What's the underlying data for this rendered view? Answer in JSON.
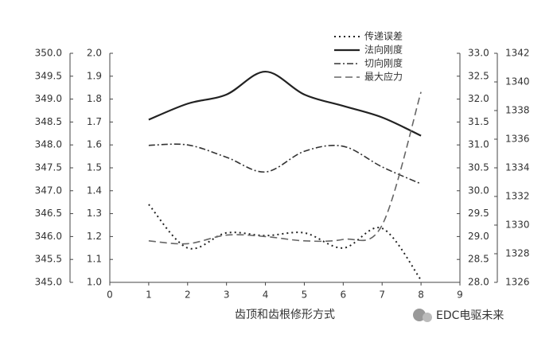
{
  "chart_data": {
    "type": "line",
    "x_label": "齿顶和齿根修形方式",
    "x": [
      1,
      2,
      3,
      4,
      5,
      6,
      7,
      8
    ],
    "xlim": [
      0,
      9
    ],
    "xticks": [
      0,
      1,
      2,
      3,
      4,
      5,
      6,
      7,
      8,
      9
    ],
    "ylim": [
      345,
      350
    ],
    "yticks": [
      {
        "value": 345,
        "label": "345.0"
      },
      {
        "value": 345.5,
        "label": "345.5"
      },
      {
        "value": 346,
        "label": "346.0"
      },
      {
        "value": 346.5,
        "label": "346.5"
      },
      {
        "value": 347,
        "label": "347.0"
      },
      {
        "value": 347.5,
        "label": "347.5"
      },
      {
        "value": 348,
        "label": "348.0"
      },
      {
        "value": 348.5,
        "label": "348.5"
      },
      {
        "value": 349,
        "label": "349.0"
      },
      {
        "value": 349.5,
        "label": "349.5"
      },
      {
        "value": 350,
        "label": "350.0"
      }
    ],
    "y2lim": [
      1,
      2
    ],
    "y2ticks": [
      {
        "value": 1,
        "label": "1.0"
      },
      1.1,
      1.2,
      1.3,
      1.4,
      1.5,
      1.6,
      1.7,
      1.8,
      1.9,
      {
        "value": 2,
        "label": "2.0"
      }
    ],
    "y3lim": [
      28,
      33
    ],
    "y3ticks": [
      {
        "value": 28,
        "label": "28.0"
      },
      28.5,
      {
        "value": 29,
        "label": "29.0"
      },
      29.5,
      {
        "value": 30,
        "label": "30.0"
      },
      30.5,
      {
        "value": 31,
        "label": "31.0"
      },
      31.5,
      {
        "value": 32,
        "label": "32.0"
      },
      32.5,
      {
        "value": 33,
        "label": "33.0"
      }
    ],
    "y4lim": [
      1326,
      1342
    ],
    "y4ticks": [
      1326,
      1328,
      1330,
      1332,
      1334,
      1336,
      1338,
      1340,
      1342
    ],
    "series": [
      {
        "name": "传递误差",
        "color": "#222222",
        "style": "dotted",
        "axis": "y",
        "values": [
          346.7,
          345.75,
          346.08,
          346.02,
          346.08,
          345.75,
          346.18,
          345.05
        ]
      },
      {
        "name": "法向刚度",
        "color": "#222222",
        "style": "solid",
        "axis": "y2",
        "values": [
          1.71,
          1.78,
          1.82,
          1.92,
          1.82,
          1.77,
          1.72,
          1.64
        ]
      },
      {
        "name": "切向刚度",
        "color": "#333333",
        "style": "dashdot",
        "axis": "y3",
        "values": [
          30.99,
          31.0,
          30.73,
          30.41,
          30.86,
          30.97,
          30.52,
          30.15
        ]
      },
      {
        "name": "最大应力",
        "color": "#666666",
        "style": "dashed",
        "axis": "y4",
        "values": [
          1328.9,
          1328.7,
          1329.3,
          1329.2,
          1328.9,
          1329.0,
          1330.0,
          1339.3
        ]
      }
    ],
    "watermark": "EDC电驱未来"
  }
}
